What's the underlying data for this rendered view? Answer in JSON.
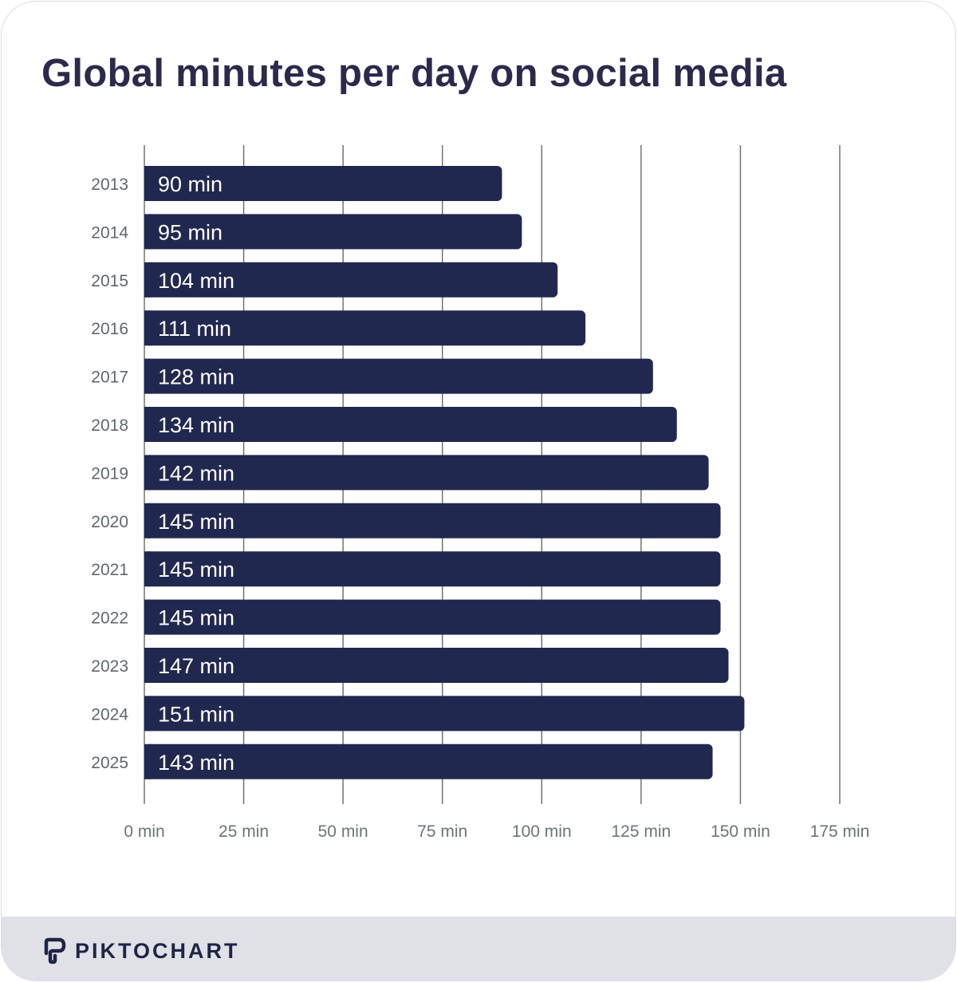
{
  "chart_data": {
    "type": "bar",
    "orientation": "horizontal",
    "title": "Global minutes per day on social media",
    "categories": [
      "2013",
      "2014",
      "2015",
      "2016",
      "2017",
      "2018",
      "2019",
      "2020",
      "2021",
      "2022",
      "2023",
      "2024",
      "2025"
    ],
    "values": [
      90,
      95,
      104,
      111,
      128,
      134,
      142,
      145,
      145,
      145,
      147,
      151,
      143
    ],
    "data_labels": [
      "90 min",
      "95 min",
      "104 min",
      "111 min",
      "128 min",
      "134 min",
      "142 min",
      "145 min",
      "145 min",
      "145 min",
      "147 min",
      "151 min",
      "143 min"
    ],
    "xlim": [
      0,
      175
    ],
    "xticks": [
      0,
      25,
      50,
      75,
      100,
      125,
      150,
      175
    ],
    "xtick_labels": [
      "0 min",
      "25 min",
      "50 min",
      "75 min",
      "100 min",
      "125 min",
      "150 min",
      "175 min"
    ],
    "grid": true,
    "bar_color": "#21284f",
    "label_color": "#ffffff",
    "xlabel": "",
    "ylabel": ""
  },
  "footer": {
    "brand": "PIKTOCHART"
  }
}
